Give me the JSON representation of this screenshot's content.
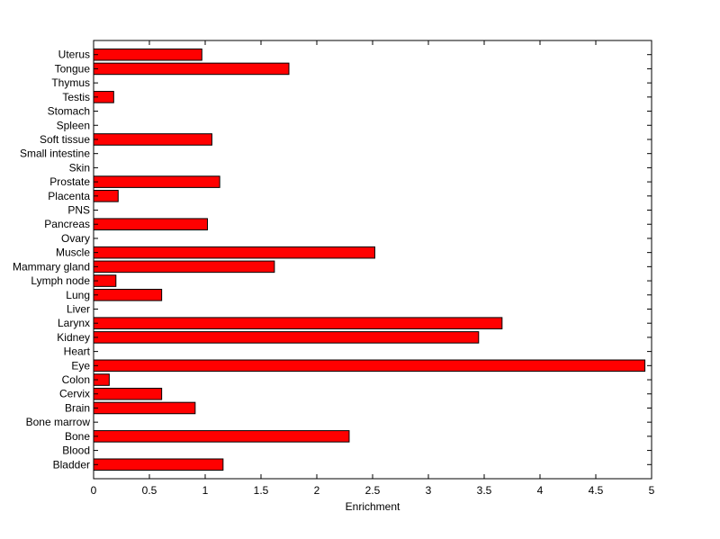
{
  "chart_data": {
    "type": "bar",
    "orientation": "horizontal",
    "title": "",
    "xlabel": "Enrichment",
    "ylabel": "",
    "xlim": [
      0,
      5
    ],
    "xticks": [
      0,
      0.5,
      1,
      1.5,
      2,
      2.5,
      3,
      3.5,
      4,
      4.5,
      5
    ],
    "xtick_labels": [
      "0",
      "0.5",
      "1",
      "1.5",
      "2",
      "2.5",
      "3",
      "3.5",
      "4",
      "4.5",
      "5"
    ],
    "grid": false,
    "bar_color": "#ff0000",
    "categories": [
      "Bladder",
      "Blood",
      "Bone",
      "Bone marrow",
      "Brain",
      "Cervix",
      "Colon",
      "Eye",
      "Heart",
      "Kidney",
      "Larynx",
      "Liver",
      "Lung",
      "Lymph node",
      "Mammary gland",
      "Muscle",
      "Ovary",
      "Pancreas",
      "PNS",
      "Placenta",
      "Prostate",
      "Skin",
      "Small intestine",
      "Soft tissue",
      "Spleen",
      "Stomach",
      "Testis",
      "Thymus",
      "Tongue",
      "Uterus"
    ],
    "values": [
      1.16,
      0,
      2.29,
      0,
      0.91,
      0.61,
      0.14,
      4.94,
      0,
      3.45,
      3.66,
      0,
      0.61,
      0.2,
      1.62,
      2.52,
      0,
      1.02,
      0,
      0.22,
      1.13,
      0,
      0,
      1.06,
      0,
      0,
      0.18,
      0,
      1.75,
      0.97
    ]
  }
}
